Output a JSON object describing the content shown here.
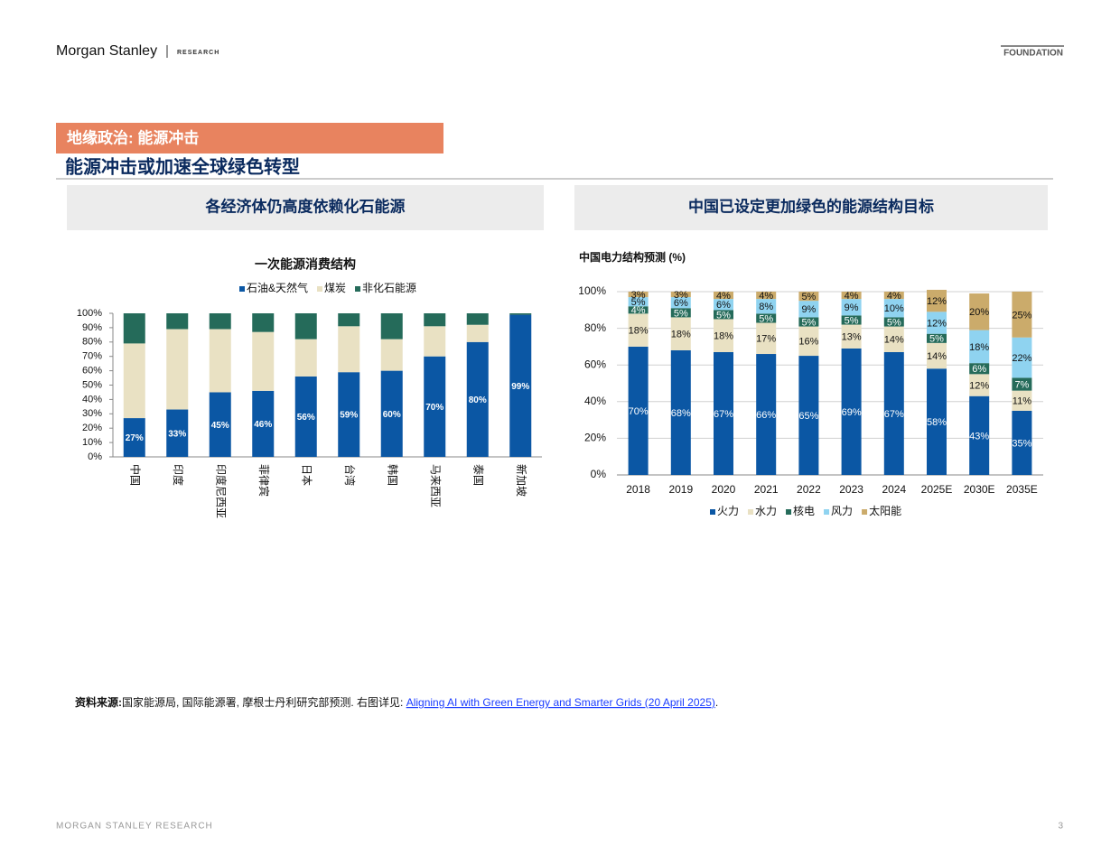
{
  "header": {
    "brand": "Morgan Stanley",
    "division": "RESEARCH",
    "tag": "FOUNDATION"
  },
  "section": "地缘政治: 能源冲击",
  "title": "能源冲击或加速全球绿色转型",
  "panels": [
    "各经济体仍高度依赖化石能源",
    "中国已设定更加绿色的能源结构目标"
  ],
  "chart_data": [
    {
      "type": "bar",
      "stacked": true,
      "title": "一次能源消费结构",
      "legend": "top",
      "grid": false,
      "categories": [
        "中国",
        "印度",
        "印度尼西亚",
        "菲律宾",
        "日本",
        "台湾",
        "韩国",
        "马来西亚",
        "泰国",
        "新加坡"
      ],
      "series": [
        {
          "name": "石油&天然气",
          "color": "#0b57a4",
          "values": [
            27,
            33,
            45,
            46,
            56,
            59,
            60,
            70,
            80,
            99
          ],
          "value_labels": [
            "27%",
            "33%",
            "45%",
            "46%",
            "56%",
            "59%",
            "60%",
            "70%",
            "80%",
            "99%"
          ]
        },
        {
          "name": "煤炭",
          "color": "#e9e1c3",
          "values": [
            52,
            56,
            44,
            41,
            26,
            32,
            22,
            21,
            12,
            0
          ]
        },
        {
          "name": "非化石能源",
          "color": "#256b5a",
          "values": [
            21,
            11,
            11,
            13,
            18,
            9,
            18,
            9,
            8,
            1
          ]
        }
      ],
      "ylim": [
        0,
        100
      ],
      "yticks": [
        {
          "value": 0,
          "label": "0%"
        },
        {
          "value": 10,
          "label": "10%"
        },
        {
          "value": 20,
          "label": "20%"
        },
        {
          "value": 30,
          "label": "30%"
        },
        {
          "value": 40,
          "label": "40%"
        },
        {
          "value": 50,
          "label": "50%"
        },
        {
          "value": 60,
          "label": "60%"
        },
        {
          "value": 70,
          "label": "70%"
        },
        {
          "value": 80,
          "label": "80%"
        },
        {
          "value": 90,
          "label": "90%"
        },
        {
          "value": 100,
          "label": "100%"
        }
      ]
    },
    {
      "type": "bar",
      "stacked": true,
      "title": "中国电力结构预测 (%)",
      "legend": "bottom",
      "grid": true,
      "categories": [
        "2018",
        "2019",
        "2020",
        "2021",
        "2022",
        "2023",
        "2024",
        "2025E",
        "2030E",
        "2035E"
      ],
      "series": [
        {
          "name": "火力",
          "color": "#0b57a4",
          "values": [
            70,
            68,
            67,
            66,
            65,
            69,
            67,
            58,
            43,
            35
          ],
          "value_labels": [
            "70%",
            "68%",
            "67%",
            "66%",
            "65%",
            "69%",
            "67%",
            "58%",
            "43%",
            "35%"
          ]
        },
        {
          "name": "水力",
          "color": "#e9e1c3",
          "values": [
            18,
            18,
            18,
            17,
            16,
            13,
            14,
            14,
            12,
            11
          ],
          "value_labels": [
            "18%",
            "18%",
            "18%",
            "17%",
            "16%",
            "13%",
            "14%",
            "14%",
            "12%",
            "11%"
          ]
        },
        {
          "name": "核电",
          "color": "#256b5a",
          "values": [
            4,
            5,
            5,
            5,
            5,
            5,
            5,
            5,
            6,
            7
          ],
          "value_labels": [
            "4%",
            "5%",
            "5%",
            "5%",
            "5%",
            "5%",
            "5%",
            "5%",
            "6%",
            "7%"
          ]
        },
        {
          "name": "风力",
          "color": "#8fd3f0",
          "values": [
            5,
            6,
            6,
            8,
            9,
            9,
            10,
            12,
            18,
            22
          ],
          "value_labels": [
            "5%",
            "6%",
            "6%",
            "8%",
            "9%",
            "9%",
            "10%",
            "12%",
            "18%",
            "22%"
          ]
        },
        {
          "name": "太阳能",
          "color": "#cbab6b",
          "values": [
            3,
            3,
            4,
            4,
            5,
            4,
            4,
            12,
            20,
            25
          ],
          "value_labels": [
            "3%",
            "3%",
            "4%",
            "4%",
            "5%",
            "4%",
            "4%",
            "12%",
            "20%",
            "25%"
          ]
        }
      ],
      "ylim": [
        0,
        100
      ],
      "yticks": [
        {
          "value": 0,
          "label": "0%"
        },
        {
          "value": 20,
          "label": "20%"
        },
        {
          "value": 40,
          "label": "40%"
        },
        {
          "value": 60,
          "label": "60%"
        },
        {
          "value": 80,
          "label": "80%"
        },
        {
          "value": 100,
          "label": "100%"
        }
      ]
    }
  ],
  "source": {
    "label": "资料来源:",
    "text": "国家能源局, 国际能源署, 摩根士丹利研究部预测. 右图详见: ",
    "link": "Aligning AI with Green Energy and Smarter Grids (20 April 2025)",
    "end": "."
  },
  "footer": {
    "text": "MORGAN STANLEY RESEARCH",
    "page": "3"
  }
}
